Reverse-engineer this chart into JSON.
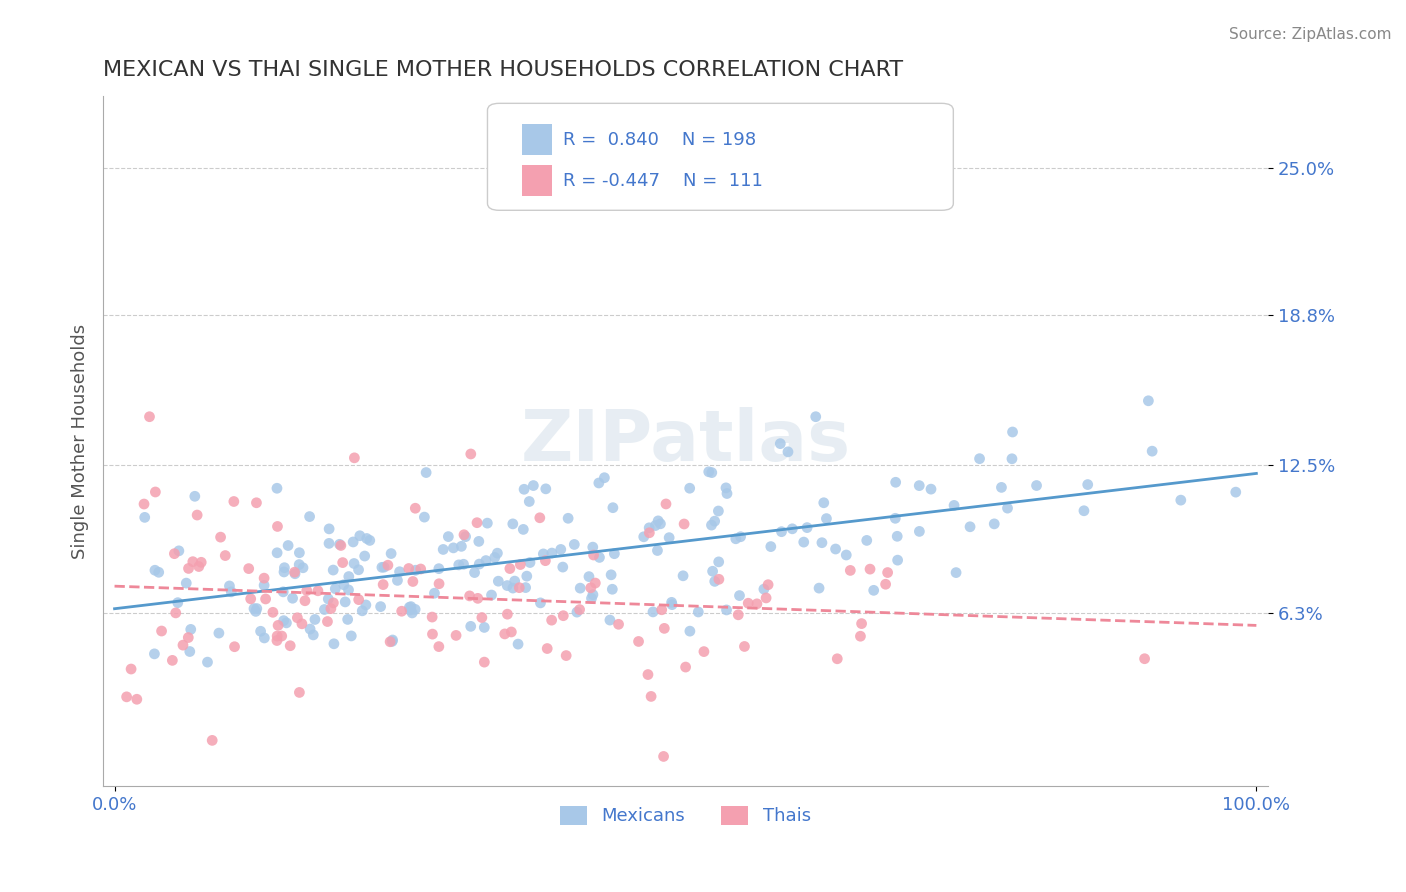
{
  "title": "MEXICAN VS THAI SINGLE MOTHER HOUSEHOLDS CORRELATION CHART",
  "source": "Source: ZipAtlas.com",
  "xlabel": "",
  "ylabel": "Single Mother Households",
  "xlim": [
    0,
    1.0
  ],
  "ylim": [
    -0.01,
    0.28
  ],
  "yticks": [
    0.063,
    0.125,
    0.188,
    0.25
  ],
  "ytick_labels": [
    "6.3%",
    "12.5%",
    "18.8%",
    "25.0%"
  ],
  "xticks": [
    0.0,
    1.0
  ],
  "xtick_labels": [
    "0.0%",
    "100.0%"
  ],
  "blue_color": "#a8c8e8",
  "pink_color": "#f4a0b0",
  "blue_line_color": "#5599cc",
  "pink_line_color": "#ee8899",
  "label_color": "#4477cc",
  "r_blue": 0.84,
  "n_blue": 198,
  "r_pink": -0.447,
  "n_pink": 111,
  "legend_label_blue": "Mexicans",
  "legend_label_pink": "Thais",
  "watermark": "ZIPatlas",
  "background_color": "#ffffff",
  "grid_color": "#cccccc",
  "title_color": "#333333"
}
